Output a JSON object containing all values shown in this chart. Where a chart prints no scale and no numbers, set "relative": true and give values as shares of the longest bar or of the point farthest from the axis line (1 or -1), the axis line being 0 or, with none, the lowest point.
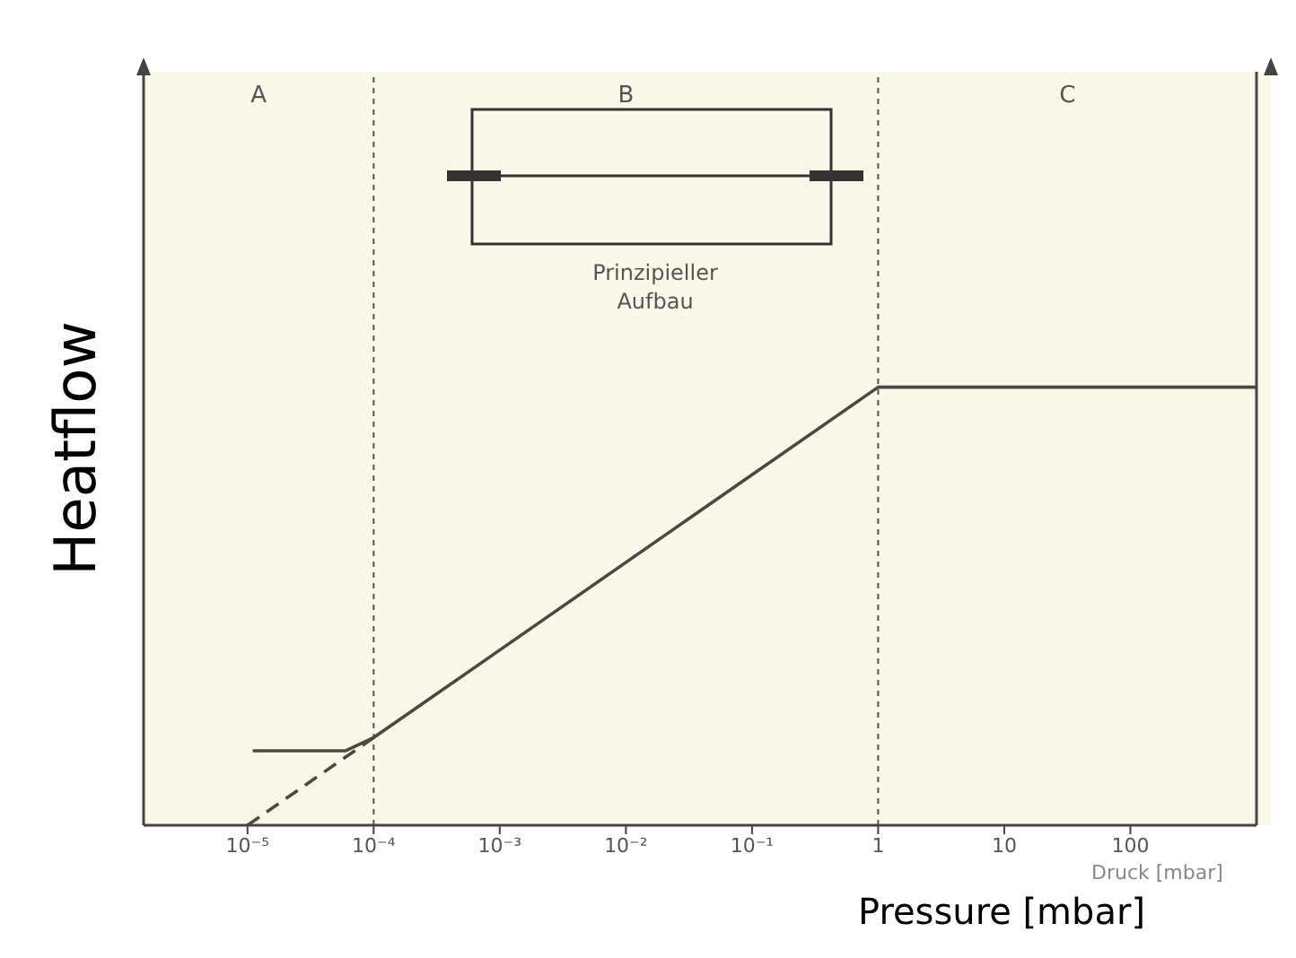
{
  "chart_data": {
    "type": "line",
    "relative": true,
    "log": "x",
    "xlabel": "Pressure [mbar]",
    "ylabel": "Heatflow",
    "xlim": [
      1.5e-06,
      1000
    ],
    "xticks": [
      {
        "value": 1e-05,
        "label": "10⁻⁵"
      },
      {
        "value": 0.0001,
        "label": "10⁻⁴"
      },
      {
        "value": 0.001,
        "label": "10⁻³"
      },
      {
        "value": 0.01,
        "label": "10⁻²"
      },
      {
        "value": 0.1,
        "label": "10⁻¹"
      },
      1,
      10,
      100
    ],
    "series": [
      {
        "color": "#4a4a44",
        "x": [
          1.1e-05,
          6e-05,
          0.0001,
          1,
          1000
        ],
        "values": [
          0.17,
          0.17,
          0.2,
          1,
          1
        ]
      },
      {
        "color": "#4a4a44",
        "line_style": "dashed",
        "x": [
          1e-05,
          0.0001
        ],
        "values": [
          0,
          0.2
        ]
      }
    ],
    "ref_lines": [
      {
        "axis": "x",
        "value": 0.0001,
        "line_style": "dotted"
      },
      {
        "axis": "x",
        "value": 1,
        "line_style": "dotted"
      }
    ],
    "annotations": [
      "Prinzipieller Aufbau",
      "Druck [mbar]",
      "A",
      "B",
      "C"
    ],
    "grid": false,
    "legend": false,
    "marker": "none",
    "line_style": "solid"
  }
}
